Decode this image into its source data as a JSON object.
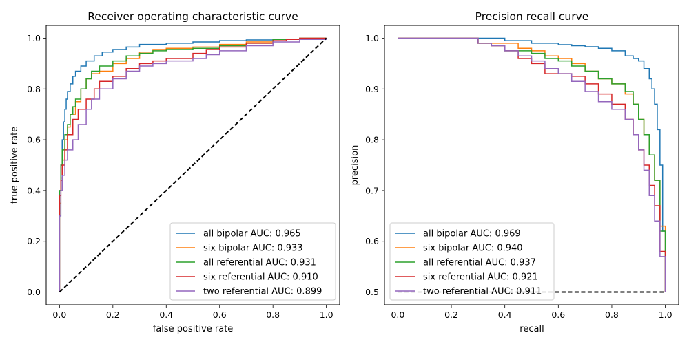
{
  "colors": {
    "all_bipolar": "#1f77b4",
    "six_bipolar": "#ff7f0e",
    "all_referential": "#2ca02c",
    "six_referential": "#d62728",
    "two_referential": "#9467bd",
    "baseline": "#000000"
  },
  "chart_data": [
    {
      "type": "line",
      "title": "Receiver operating characteristic curve",
      "xlabel": "false positive rate",
      "ylabel": "true positive rate",
      "xlim": [
        -0.05,
        1.05
      ],
      "ylim": [
        -0.05,
        1.05
      ],
      "xticks": [
        "0.0",
        "0.2",
        "0.4",
        "0.6",
        "0.8",
        "1.0"
      ],
      "yticks": [
        "0.0",
        "0.2",
        "0.4",
        "0.6",
        "0.8",
        "1.0"
      ],
      "legend_position": "lower-right",
      "grid": false,
      "series": [
        {
          "name": "all bipolar AUC: 0.965",
          "color": "#1f77b4",
          "x": [
            0.0,
            0.0,
            0.005,
            0.01,
            0.015,
            0.02,
            0.025,
            0.03,
            0.04,
            0.05,
            0.06,
            0.08,
            0.1,
            0.13,
            0.16,
            0.2,
            0.25,
            0.3,
            0.4,
            0.5,
            0.6,
            0.7,
            0.8,
            0.9,
            1.0
          ],
          "y": [
            0.0,
            0.3,
            0.5,
            0.6,
            0.67,
            0.72,
            0.76,
            0.79,
            0.82,
            0.85,
            0.87,
            0.89,
            0.91,
            0.93,
            0.945,
            0.955,
            0.965,
            0.975,
            0.98,
            0.985,
            0.99,
            0.993,
            0.996,
            0.999,
            1.0
          ]
        },
        {
          "name": "six bipolar AUC: 0.933",
          "color": "#ff7f0e",
          "x": [
            0.0,
            0.0,
            0.005,
            0.01,
            0.02,
            0.03,
            0.04,
            0.06,
            0.08,
            0.1,
            0.12,
            0.15,
            0.2,
            0.25,
            0.3,
            0.35,
            0.4,
            0.5,
            0.6,
            0.7,
            0.8,
            0.9,
            1.0
          ],
          "y": [
            0.0,
            0.35,
            0.45,
            0.52,
            0.6,
            0.65,
            0.7,
            0.75,
            0.8,
            0.84,
            0.86,
            0.87,
            0.9,
            0.92,
            0.945,
            0.955,
            0.96,
            0.965,
            0.975,
            0.985,
            0.995,
            1.0,
            1.0
          ]
        },
        {
          "name": "all referential AUC: 0.931",
          "color": "#2ca02c",
          "x": [
            0.0,
            0.0,
            0.005,
            0.01,
            0.02,
            0.03,
            0.04,
            0.05,
            0.06,
            0.08,
            0.1,
            0.12,
            0.15,
            0.2,
            0.25,
            0.3,
            0.35,
            0.4,
            0.5,
            0.6,
            0.7,
            0.8,
            0.9,
            1.0
          ],
          "y": [
            0.0,
            0.4,
            0.5,
            0.56,
            0.62,
            0.66,
            0.7,
            0.73,
            0.76,
            0.8,
            0.84,
            0.87,
            0.89,
            0.91,
            0.93,
            0.94,
            0.95,
            0.955,
            0.96,
            0.97,
            0.98,
            0.995,
            1.0,
            1.0
          ]
        },
        {
          "name": "six referential AUC: 0.910",
          "color": "#d62728",
          "x": [
            0.0,
            0.0,
            0.005,
            0.01,
            0.02,
            0.03,
            0.05,
            0.07,
            0.1,
            0.13,
            0.15,
            0.2,
            0.25,
            0.3,
            0.35,
            0.4,
            0.5,
            0.55,
            0.6,
            0.7,
            0.8,
            0.85,
            0.9,
            1.0
          ],
          "y": [
            0.0,
            0.38,
            0.44,
            0.5,
            0.56,
            0.62,
            0.68,
            0.72,
            0.76,
            0.8,
            0.83,
            0.85,
            0.88,
            0.9,
            0.91,
            0.92,
            0.94,
            0.955,
            0.965,
            0.98,
            0.99,
            0.995,
            1.0,
            1.0
          ]
        },
        {
          "name": "two referential AUC: 0.899",
          "color": "#9467bd",
          "x": [
            0.0,
            0.0,
            0.005,
            0.01,
            0.02,
            0.03,
            0.05,
            0.07,
            0.1,
            0.12,
            0.15,
            0.2,
            0.25,
            0.3,
            0.35,
            0.4,
            0.5,
            0.55,
            0.6,
            0.7,
            0.8,
            0.9,
            1.0
          ],
          "y": [
            0.0,
            0.3,
            0.4,
            0.46,
            0.52,
            0.56,
            0.6,
            0.66,
            0.72,
            0.76,
            0.8,
            0.84,
            0.87,
            0.89,
            0.9,
            0.91,
            0.92,
            0.935,
            0.95,
            0.97,
            0.985,
            0.995,
            1.0
          ]
        },
        {
          "name": "",
          "color": "#000000",
          "dashed": true,
          "x": [
            0.0,
            1.0
          ],
          "y": [
            0.0,
            1.0
          ]
        }
      ]
    },
    {
      "type": "line",
      "title": "Precision recall curve",
      "xlabel": "recall",
      "ylabel": "precision",
      "xlim": [
        -0.05,
        1.05
      ],
      "ylim": [
        0.475,
        1.025
      ],
      "xticks": [
        "0.0",
        "0.2",
        "0.4",
        "0.6",
        "0.8",
        "1.0"
      ],
      "yticks": [
        "0.5",
        "0.6",
        "0.7",
        "0.8",
        "0.9",
        "1.0"
      ],
      "legend_position": "lower-left",
      "grid": false,
      "series": [
        {
          "name": "all bipolar AUC: 0.969",
          "color": "#1f77b4",
          "x": [
            0.0,
            0.3,
            0.4,
            0.5,
            0.6,
            0.65,
            0.7,
            0.75,
            0.8,
            0.85,
            0.88,
            0.9,
            0.92,
            0.94,
            0.95,
            0.96,
            0.97,
            0.98,
            0.99,
            1.0
          ],
          "y": [
            1.0,
            1.0,
            0.995,
            0.99,
            0.987,
            0.985,
            0.983,
            0.98,
            0.975,
            0.965,
            0.96,
            0.955,
            0.94,
            0.92,
            0.9,
            0.87,
            0.82,
            0.75,
            0.62,
            0.5
          ]
        },
        {
          "name": "six bipolar AUC: 0.940",
          "color": "#ff7f0e",
          "x": [
            0.0,
            0.25,
            0.3,
            0.4,
            0.45,
            0.5,
            0.55,
            0.6,
            0.65,
            0.7,
            0.75,
            0.8,
            0.85,
            0.88,
            0.9,
            0.92,
            0.94,
            0.96,
            0.98,
            1.0
          ],
          "y": [
            1.0,
            1.0,
            0.99,
            0.99,
            0.98,
            0.975,
            0.965,
            0.96,
            0.95,
            0.935,
            0.92,
            0.91,
            0.89,
            0.87,
            0.84,
            0.81,
            0.77,
            0.72,
            0.63,
            0.5
          ]
        },
        {
          "name": "all referential AUC: 0.937",
          "color": "#2ca02c",
          "x": [
            0.0,
            0.25,
            0.3,
            0.35,
            0.4,
            0.5,
            0.55,
            0.6,
            0.65,
            0.7,
            0.75,
            0.8,
            0.85,
            0.88,
            0.9,
            0.92,
            0.94,
            0.96,
            0.98,
            1.0
          ],
          "y": [
            1.0,
            1.0,
            0.99,
            0.985,
            0.975,
            0.97,
            0.96,
            0.955,
            0.945,
            0.935,
            0.92,
            0.91,
            0.895,
            0.87,
            0.84,
            0.81,
            0.77,
            0.72,
            0.62,
            0.5
          ]
        },
        {
          "name": "six referential AUC: 0.921",
          "color": "#d62728",
          "x": [
            0.0,
            0.25,
            0.3,
            0.35,
            0.4,
            0.45,
            0.5,
            0.55,
            0.6,
            0.65,
            0.7,
            0.75,
            0.8,
            0.85,
            0.88,
            0.9,
            0.92,
            0.94,
            0.96,
            0.98,
            1.0
          ],
          "y": [
            1.0,
            1.0,
            0.99,
            0.985,
            0.975,
            0.96,
            0.95,
            0.93,
            0.93,
            0.925,
            0.91,
            0.89,
            0.87,
            0.84,
            0.81,
            0.78,
            0.75,
            0.71,
            0.67,
            0.58,
            0.5
          ]
        },
        {
          "name": "two referential AUC: 0.911",
          "color": "#9467bd",
          "x": [
            0.0,
            0.25,
            0.3,
            0.35,
            0.4,
            0.45,
            0.5,
            0.55,
            0.6,
            0.65,
            0.7,
            0.75,
            0.8,
            0.85,
            0.88,
            0.9,
            0.92,
            0.94,
            0.96,
            0.98,
            1.0
          ],
          "y": [
            1.0,
            1.0,
            0.99,
            0.985,
            0.975,
            0.965,
            0.955,
            0.94,
            0.93,
            0.915,
            0.895,
            0.875,
            0.86,
            0.84,
            0.81,
            0.78,
            0.74,
            0.69,
            0.64,
            0.57,
            0.5
          ]
        },
        {
          "name": "",
          "color": "#000000",
          "dashed": true,
          "x": [
            0.0,
            1.0
          ],
          "y": [
            0.5,
            0.5
          ]
        }
      ]
    }
  ]
}
